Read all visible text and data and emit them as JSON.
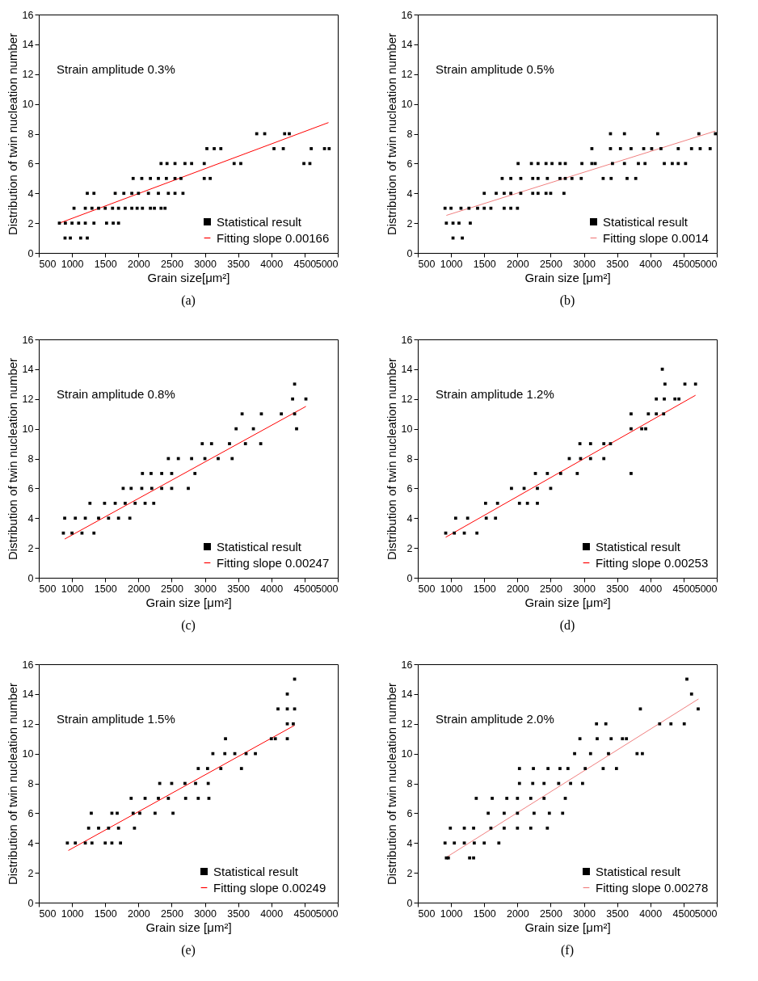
{
  "chart_data": [
    {
      "type": "scatter",
      "title": "(a)",
      "xlabel": "Grain size[μm²]",
      "ylabel": "Distribution of twin nucleation number",
      "annotations": [
        "Strain amplitude 0.3%"
      ],
      "xlim": [
        500,
        5000
      ],
      "ylim": [
        0,
        16
      ],
      "xticks": [
        500,
        1000,
        1500,
        2000,
        2500,
        3000,
        3500,
        4000,
        4500,
        5000
      ],
      "yticks": [
        0,
        2,
        4,
        6,
        8,
        10,
        12,
        14,
        16
      ],
      "legend": "bottom right",
      "series": [
        {
          "name": "Statistical result",
          "color": "#000000",
          "marker": "square",
          "x": [
            895,
            975,
            1130,
            1230,
            810,
            900,
            1000,
            1100,
            1200,
            1330,
            1520,
            1620,
            1700,
            1030,
            1200,
            1300,
            1400,
            1500,
            1610,
            1700,
            1800,
            1900,
            1980,
            2060,
            2180,
            2240,
            2340,
            2400,
            1230,
            1330,
            1650,
            1780,
            1900,
            2000,
            2150,
            2300,
            2450,
            2550,
            2670,
            1920,
            2050,
            2180,
            2300,
            2420,
            2550,
            2640,
            2990,
            3080,
            2340,
            2430,
            2550,
            2700,
            2800,
            2990,
            3440,
            3540,
            4490,
            4580,
            3030,
            3140,
            3240,
            4040,
            4180,
            4600,
            4800,
            4870,
            3780,
            3900,
            4200,
            4270
          ],
          "values": [
            1,
            1,
            1,
            1,
            2,
            2,
            2,
            2,
            2,
            2,
            2,
            2,
            2,
            3,
            3,
            3,
            3,
            3,
            3,
            3,
            3,
            3,
            3,
            3,
            3,
            3,
            3,
            3,
            4,
            4,
            4,
            4,
            4,
            4,
            4,
            4,
            4,
            4,
            4,
            5,
            5,
            5,
            5,
            5,
            5,
            5,
            5,
            5,
            6,
            6,
            6,
            6,
            6,
            6,
            6,
            6,
            6,
            6,
            7,
            7,
            7,
            7,
            7,
            7,
            7,
            7,
            8,
            8,
            8,
            8
          ]
        },
        {
          "type": "line",
          "name": "Fitting slope 0.00166",
          "color": "#ff0000",
          "x": [
            810,
            4860
          ],
          "values": [
            2.0,
            8.75
          ]
        }
      ]
    },
    {
      "type": "scatter",
      "title": "(b)",
      "xlabel": "Grain size [μm²]",
      "ylabel": "Distribution of twin nucleation number",
      "annotations": [
        "Strain amplitude 0.5%"
      ],
      "xlim": [
        500,
        5000
      ],
      "ylim": [
        0,
        16
      ],
      "xticks": [
        500,
        1000,
        1500,
        2000,
        2500,
        3000,
        3500,
        4000,
        4500,
        5000
      ],
      "yticks": [
        0,
        2,
        4,
        6,
        8,
        10,
        12,
        14,
        16
      ],
      "legend": "bottom right",
      "series": [
        {
          "name": "Statistical result",
          "color": "#000000",
          "marker": "square",
          "x": [
            1030,
            1170,
            930,
            1030,
            1120,
            1290,
            910,
            1000,
            1150,
            1270,
            1400,
            1500,
            1600,
            1800,
            1900,
            2000,
            1500,
            1680,
            1800,
            1900,
            2050,
            2230,
            2310,
            2430,
            2500,
            2700,
            1770,
            1900,
            2050,
            2230,
            2310,
            2450,
            2640,
            2720,
            2820,
            2960,
            3290,
            3410,
            3650,
            3780,
            2010,
            2210,
            2310,
            2430,
            2520,
            2640,
            2720,
            2970,
            3120,
            3170,
            3430,
            3610,
            3820,
            3920,
            4210,
            4330,
            4420,
            4530,
            3120,
            3400,
            3550,
            3710,
            3900,
            4020,
            4160,
            4420,
            4620,
            4750,
            4900,
            3400,
            3610,
            4110,
            4730,
            4980
          ],
          "values": [
            1,
            1,
            2,
            2,
            2,
            2,
            3,
            3,
            3,
            3,
            3,
            3,
            3,
            3,
            3,
            3,
            4,
            4,
            4,
            4,
            4,
            4,
            4,
            4,
            4,
            4,
            5,
            5,
            5,
            5,
            5,
            5,
            5,
            5,
            5,
            5,
            5,
            5,
            5,
            5,
            6,
            6,
            6,
            6,
            6,
            6,
            6,
            6,
            6,
            6,
            6,
            6,
            6,
            6,
            6,
            6,
            6,
            6,
            7,
            7,
            7,
            7,
            7,
            7,
            7,
            7,
            7,
            7,
            7,
            8,
            8,
            8,
            8,
            8
          ]
        },
        {
          "type": "line",
          "name": "Fitting slope 0.0014",
          "color": "#f08080",
          "x": [
            930,
            4980
          ],
          "values": [
            2.52,
            8.18
          ]
        }
      ]
    },
    {
      "type": "scatter",
      "title": "(c)",
      "xlabel": "Grain size [μm²]",
      "ylabel": "Distribution of twin nucleation number",
      "annotations": [
        "Strain amplitude 0.8%"
      ],
      "xlim": [
        500,
        5000
      ],
      "ylim": [
        0,
        16
      ],
      "xticks": [
        500,
        1000,
        1500,
        2000,
        2500,
        3000,
        3500,
        4000,
        4500,
        5000
      ],
      "yticks": [
        0,
        2,
        4,
        6,
        8,
        10,
        12,
        14,
        16
      ],
      "legend": "bottom right",
      "series": [
        {
          "name": "Statistical result",
          "color": "#000000",
          "marker": "square",
          "x": [
            870,
            1000,
            1150,
            1330,
            890,
            1050,
            1200,
            1400,
            1550,
            1700,
            1870,
            1270,
            1490,
            1650,
            1800,
            1950,
            2100,
            2230,
            1770,
            1890,
            2050,
            2200,
            2350,
            2500,
            2750,
            2060,
            2190,
            2350,
            2500,
            2850,
            2450,
            2600,
            2800,
            3000,
            3200,
            3410,
            2960,
            3100,
            3370,
            3610,
            3840,
            3470,
            3730,
            4380,
            3560,
            3850,
            4150,
            4350,
            4320,
            4520,
            4350
          ],
          "values": [
            3,
            3,
            3,
            3,
            4,
            4,
            4,
            4,
            4,
            4,
            4,
            5,
            5,
            5,
            5,
            5,
            5,
            5,
            6,
            6,
            6,
            6,
            6,
            6,
            6,
            7,
            7,
            7,
            7,
            7,
            8,
            8,
            8,
            8,
            8,
            8,
            9,
            9,
            9,
            9,
            9,
            10,
            10,
            10,
            11,
            11,
            11,
            11,
            12,
            12,
            13
          ]
        },
        {
          "type": "line",
          "name": "Fitting slope 0.00247",
          "color": "#ff0000",
          "x": [
            890,
            4520
          ],
          "values": [
            2.6,
            11.5
          ]
        }
      ]
    },
    {
      "type": "scatter",
      "title": "(d)",
      "xlabel": "Grain size [μm²]",
      "ylabel": "Distribution of twin nucleation number",
      "annotations": [
        "Strain amplitude 1.2%"
      ],
      "xlim": [
        500,
        5000
      ],
      "ylim": [
        0,
        16
      ],
      "xticks": [
        500,
        1000,
        1500,
        2000,
        2500,
        3000,
        3500,
        4000,
        4500,
        5000
      ],
      "yticks": [
        0,
        2,
        4,
        6,
        8,
        10,
        12,
        14,
        16
      ],
      "legend": "bottom right",
      "series": [
        {
          "name": "Statistical result",
          "color": "#000000",
          "marker": "square",
          "x": [
            920,
            1050,
            1200,
            1390,
            1070,
            1250,
            1530,
            1670,
            1520,
            1700,
            2030,
            2150,
            2300,
            1910,
            2100,
            2300,
            2500,
            2270,
            2450,
            2650,
            2900,
            2780,
            2950,
            3100,
            3300,
            2940,
            3100,
            3300,
            3400,
            3710,
            3710,
            3870,
            3930,
            3710,
            3970,
            4090,
            4200,
            4090,
            4210,
            4370,
            4430,
            4220,
            4520,
            4680,
            4180
          ],
          "values": [
            3,
            3,
            3,
            3,
            4,
            4,
            4,
            4,
            5,
            5,
            5,
            5,
            5,
            6,
            6,
            6,
            6,
            7,
            7,
            7,
            7,
            8,
            8,
            8,
            8,
            9,
            9,
            9,
            9,
            7,
            10,
            10,
            10,
            11,
            11,
            11,
            11,
            12,
            12,
            12,
            12,
            13,
            13,
            13,
            14
          ]
        },
        {
          "type": "line",
          "name": "Fitting slope 0.00253",
          "color": "#ff0000",
          "x": [
            920,
            4680
          ],
          "values": [
            2.72,
            12.25
          ]
        }
      ]
    },
    {
      "type": "scatter",
      "title": "(e)",
      "xlabel": "Grain size [μm²]",
      "ylabel": "Distribution of twin nucleation number",
      "annotations": [
        "Strain amplitude 1.5%"
      ],
      "xlim": [
        500,
        5000
      ],
      "ylim": [
        0,
        16
      ],
      "xticks": [
        500,
        1000,
        1500,
        2000,
        2500,
        3000,
        3500,
        4000,
        4500,
        5000
      ],
      "yticks": [
        0,
        2,
        4,
        6,
        8,
        10,
        12,
        14,
        16
      ],
      "legend": "bottom right",
      "series": [
        {
          "name": "Statistical result",
          "color": "#000000",
          "marker": "square",
          "x": [
            930,
            1050,
            1200,
            1300,
            1500,
            1600,
            1730,
            1250,
            1400,
            1550,
            1700,
            1940,
            1290,
            1600,
            1680,
            1920,
            2020,
            2250,
            2520,
            1890,
            2100,
            2300,
            2450,
            2710,
            2900,
            3060,
            2320,
            2500,
            2700,
            2860,
            3050,
            2900,
            3040,
            3240,
            3550,
            3120,
            3300,
            3450,
            3620,
            3760,
            3310,
            4000,
            4060,
            4240,
            4240,
            4330,
            4100,
            4240,
            4350,
            4240,
            4350
          ],
          "values": [
            4,
            4,
            4,
            4,
            4,
            4,
            4,
            5,
            5,
            5,
            5,
            5,
            6,
            6,
            6,
            6,
            6,
            6,
            6,
            7,
            7,
            7,
            7,
            7,
            7,
            7,
            8,
            8,
            8,
            8,
            8,
            9,
            9,
            9,
            9,
            10,
            10,
            10,
            10,
            10,
            11,
            11,
            11,
            11,
            12,
            12,
            13,
            13,
            13,
            14,
            15
          ]
        },
        {
          "type": "line",
          "name": "Fitting  slope 0.00249",
          "color": "#ff0000",
          "x": [
            945,
            4350
          ],
          "values": [
            3.5,
            11.9
          ]
        }
      ]
    },
    {
      "type": "scatter",
      "title": "(f)",
      "xlabel": "Grain size [μm²]",
      "ylabel": "Distribution of twin nucleation number",
      "annotations": [
        "Strain amplitude 2.0%"
      ],
      "xlim": [
        500,
        5000
      ],
      "ylim": [
        0,
        16
      ],
      "xticks": [
        500,
        1000,
        1500,
        2000,
        2500,
        3000,
        3500,
        4000,
        4500,
        5000
      ],
      "yticks": [
        0,
        2,
        4,
        6,
        8,
        10,
        12,
        14,
        16
      ],
      "legend": "bottom right",
      "series": [
        {
          "name": "Statistical result",
          "color": "#000000",
          "marker": "square",
          "x": [
            930,
            960,
            1280,
            1340,
            910,
            1050,
            1200,
            1350,
            1500,
            1720,
            990,
            1200,
            1340,
            1600,
            1800,
            2000,
            2200,
            2450,
            1560,
            1800,
            2000,
            2250,
            2480,
            2680,
            1380,
            1620,
            1840,
            2000,
            2200,
            2400,
            2720,
            2030,
            2230,
            2400,
            2620,
            2800,
            2980,
            2030,
            2240,
            2460,
            2640,
            2760,
            3020,
            3290,
            3490,
            2860,
            3100,
            3370,
            3800,
            3880,
            2940,
            3200,
            3410,
            3580,
            3640,
            3190,
            3330,
            3850,
            4140,
            4310,
            4510,
            4620,
            4720,
            4550
          ],
          "values": [
            3,
            3,
            3,
            3,
            4,
            4,
            4,
            4,
            4,
            4,
            5,
            5,
            5,
            5,
            5,
            5,
            5,
            5,
            6,
            6,
            6,
            6,
            6,
            6,
            7,
            7,
            7,
            7,
            7,
            7,
            7,
            8,
            8,
            8,
            8,
            8,
            8,
            9,
            9,
            9,
            9,
            9,
            9,
            9,
            9,
            10,
            10,
            10,
            10,
            10,
            11,
            11,
            11,
            11,
            11,
            12,
            12,
            13,
            12,
            12,
            12,
            14,
            13,
            15
          ]
        },
        {
          "type": "line",
          "name": "Fitting slope 0.00278",
          "color": "#f08080",
          "x": [
            950,
            4725
          ],
          "values": [
            3.1,
            13.67
          ]
        }
      ]
    }
  ]
}
